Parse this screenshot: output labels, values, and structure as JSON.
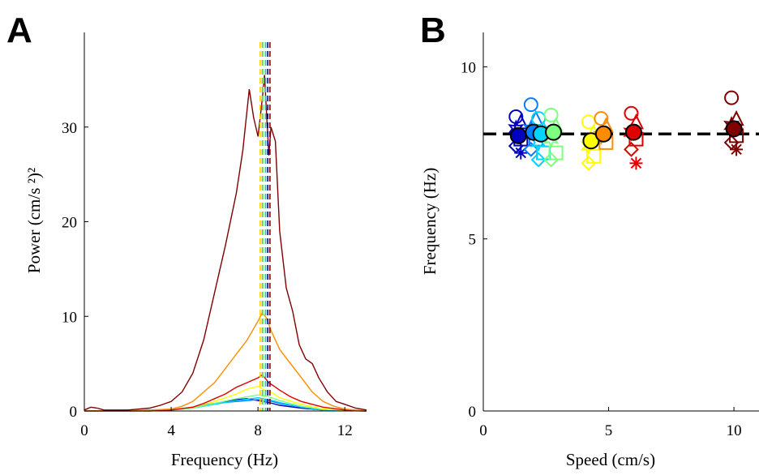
{
  "panels": {
    "a": {
      "letter": "A"
    },
    "b": {
      "letter": "B"
    }
  },
  "chart_data": [
    {
      "type": "line",
      "xlabel": "Frequency (Hz)",
      "ylabel": "Power (cm/s ²)²",
      "xlim": [
        0,
        13
      ],
      "ylim": [
        0,
        40
      ],
      "xticks": [
        0,
        4,
        8,
        12
      ],
      "yticks": [
        0,
        10,
        20,
        30
      ],
      "grid": false,
      "series": [
        {
          "color": "#7f0000",
          "x": [
            0,
            0.3,
            0.6,
            0.9,
            1.5,
            2,
            2.5,
            3,
            3.5,
            4,
            4.5,
            5,
            5.5,
            6,
            6.5,
            7,
            7.3,
            7.6,
            7.8,
            8,
            8.2,
            8.3,
            8.5,
            8.6,
            8.8,
            9,
            9.3,
            9.6,
            9.9,
            10.2,
            10.5,
            10.8,
            11.2,
            11.6,
            12,
            12.5,
            13
          ],
          "values": [
            0.1,
            0.4,
            0.3,
            0.1,
            0.1,
            0.1,
            0.2,
            0.3,
            0.6,
            1,
            2,
            4,
            7.5,
            12.5,
            17.5,
            23,
            27.5,
            34,
            31,
            29,
            33,
            35.5,
            27,
            30,
            28.5,
            19,
            13,
            10.5,
            7,
            5.5,
            5,
            3.5,
            2,
            1,
            0.7,
            0.3,
            0.1
          ]
        },
        {
          "color": "#ff8c00",
          "x": [
            0,
            2,
            4,
            4.5,
            5,
            5.5,
            6,
            6.5,
            7,
            7.5,
            8,
            8.2,
            8.4,
            8.6,
            9,
            9.5,
            10,
            10.5,
            11,
            11.5,
            12,
            13
          ],
          "values": [
            0,
            0,
            0.2,
            0.5,
            1,
            2,
            3,
            4.5,
            6,
            7.5,
            9.5,
            10.4,
            9.8,
            8.5,
            6.5,
            5,
            3.5,
            2,
            1,
            0.5,
            0.2,
            0
          ]
        },
        {
          "color": "#e00000",
          "x": [
            0,
            3,
            4,
            5,
            5.5,
            6,
            6.5,
            7,
            7.5,
            8,
            8.2,
            8.5,
            9,
            9.5,
            10,
            11,
            12,
            13
          ],
          "values": [
            0,
            0,
            0.1,
            0.4,
            0.8,
            1.3,
            1.8,
            2.5,
            3,
            3.5,
            3.8,
            3,
            2.2,
            1.5,
            1,
            0.4,
            0.1,
            0
          ]
        },
        {
          "color": "#ffff00",
          "x": [
            0,
            4,
            5,
            6,
            7,
            7.5,
            8,
            8.3,
            8.6,
            9,
            10,
            11,
            13
          ],
          "values": [
            0,
            0.1,
            0.4,
            1,
            1.8,
            2.3,
            2.6,
            2.2,
            2,
            1.4,
            0.7,
            0.2,
            0
          ]
        },
        {
          "color": "#7fff7f",
          "x": [
            0,
            4,
            5,
            6,
            7,
            8,
            8.5,
            9,
            10,
            11,
            13
          ],
          "values": [
            0,
            0.1,
            0.3,
            0.8,
            1.3,
            1.7,
            1.5,
            1.1,
            0.5,
            0.2,
            0
          ]
        },
        {
          "color": "#00d4ff",
          "x": [
            0,
            4,
            5,
            6,
            7,
            8,
            8.5,
            9,
            10,
            11,
            13
          ],
          "values": [
            0,
            0.1,
            0.3,
            0.7,
            1.1,
            1.4,
            1.2,
            0.9,
            0.4,
            0.1,
            0
          ]
        },
        {
          "color": "#0080ff",
          "x": [
            0,
            4,
            5,
            6,
            7,
            8,
            8.5,
            9,
            10,
            11,
            13
          ],
          "values": [
            0,
            0.1,
            0.4,
            0.8,
            1,
            1.2,
            1.1,
            0.8,
            0.4,
            0.1,
            0
          ]
        },
        {
          "color": "#0000c0",
          "x": [
            0,
            4,
            5,
            6,
            7,
            7.5,
            8,
            8.5,
            9,
            10,
            11,
            13
          ],
          "values": [
            0,
            0.1,
            0.4,
            0.8,
            1.2,
            1.3,
            1.1,
            0.9,
            0.6,
            0.3,
            0.1,
            0
          ]
        }
      ],
      "peak_lines": [
        {
          "x": 8.1,
          "color": "#ffd700"
        },
        {
          "x": 8.2,
          "color": "#ff8c00"
        },
        {
          "x": 8.25,
          "color": "#7fff7f"
        },
        {
          "x": 8.35,
          "color": "#00c8e0"
        },
        {
          "x": 8.45,
          "color": "#000080"
        },
        {
          "x": 8.55,
          "color": "#7f0000"
        }
      ]
    },
    {
      "type": "scatter",
      "xlabel": "Speed (cm/s)",
      "ylabel": "Frequency (Hz)",
      "xlim": [
        0,
        11
      ],
      "ylim": [
        0,
        11
      ],
      "xticks": [
        0,
        5,
        10
      ],
      "yticks": [
        0,
        5,
        10
      ],
      "grid": false,
      "reference_line": {
        "y": 8.05,
        "style": "dashed",
        "color": "#000000"
      },
      "groups": [
        {
          "speed": 1.4,
          "color": "#0000c0",
          "mean": 8.0,
          "points": [
            8.55,
            8.4,
            8.2,
            7.9,
            7.7,
            7.5
          ]
        },
        {
          "speed": 2.0,
          "color": "#0080ff",
          "mean": 8.1,
          "points": [
            8.9,
            8.5,
            8.2,
            7.9,
            7.6
          ]
        },
        {
          "speed": 2.3,
          "color": "#00d4ff",
          "mean": 8.05,
          "points": [
            8.5,
            8.2,
            7.8,
            7.5,
            7.3
          ]
        },
        {
          "speed": 2.8,
          "color": "#7fff7f",
          "mean": 8.1,
          "points": [
            8.6,
            8.3,
            7.9,
            7.5,
            7.3
          ]
        },
        {
          "speed": 4.3,
          "color": "#ffff00",
          "mean": 7.85,
          "points": [
            8.4,
            8.1,
            7.7,
            7.4,
            7.2
          ]
        },
        {
          "speed": 4.8,
          "color": "#ff8c00",
          "mean": 8.05,
          "points": [
            8.5,
            8.3,
            8.0,
            7.8
          ]
        },
        {
          "speed": 6.0,
          "color": "#e00000",
          "mean": 8.1,
          "points": [
            8.65,
            8.4,
            8.1,
            7.9,
            7.6,
            7.2
          ]
        },
        {
          "speed": 10.0,
          "color": "#7f0000",
          "mean": 8.2,
          "points": [
            9.1,
            8.5,
            8.3,
            8.0,
            7.8,
            7.6
          ]
        }
      ]
    }
  ]
}
